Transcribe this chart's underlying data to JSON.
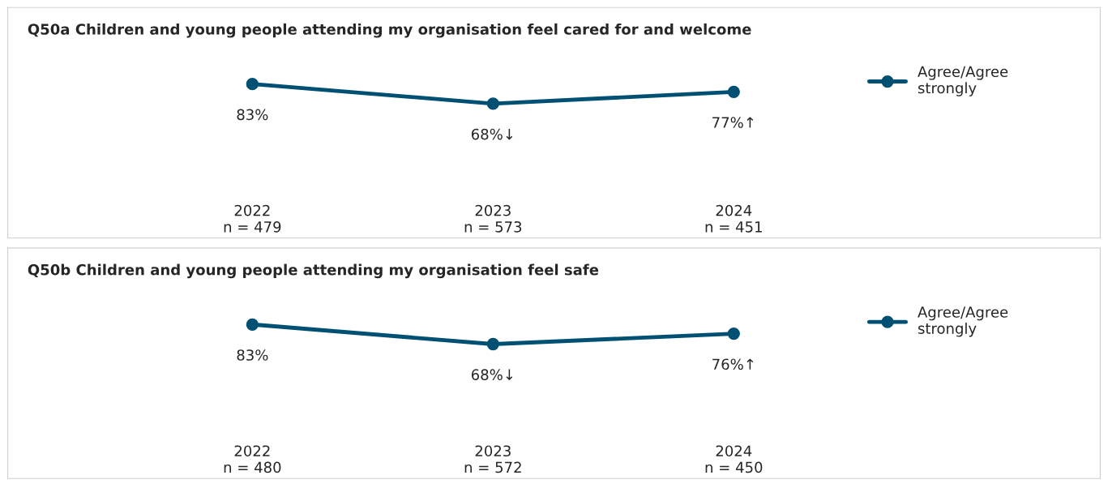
{
  "chart_data": [
    {
      "type": "line",
      "title": "Q50a Children and young people attending my organisation feel cared for and welcome",
      "categories": [
        "2022\nn = 479",
        "2023\nn = 573",
        "2024\nn = 451"
      ],
      "tick_labels": "x",
      "legend": "top right",
      "marker": "circle",
      "line_style": "solid",
      "series": [
        {
          "name": "Agree/Agree\nstrongly",
          "color": "#005073",
          "values": [
            83,
            68,
            77
          ],
          "value_labels": [
            "83%",
            "68%↓",
            "77%↑"
          ]
        }
      ]
    },
    {
      "type": "line",
      "title": "Q50b Children and young people attending my organisation feel safe",
      "categories": [
        "2022\nn = 480",
        "2023\nn = 572",
        "2024\nn = 450"
      ],
      "tick_labels": "x",
      "legend": "top right",
      "marker": "circle",
      "line_style": "solid",
      "series": [
        {
          "name": "Agree/Agree\nstrongly",
          "color": "#005073",
          "values": [
            83,
            68,
            76
          ],
          "value_labels": [
            "83%",
            "68%↓",
            "76%↑"
          ]
        }
      ]
    }
  ]
}
